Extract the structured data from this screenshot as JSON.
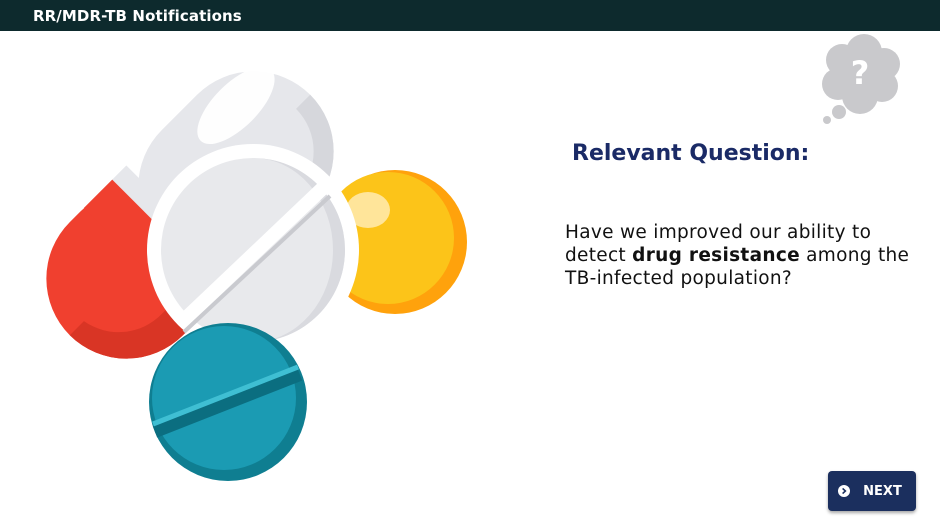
{
  "header": {
    "title": "RR/MDR-TB Notifications"
  },
  "question": {
    "heading": "Relevant Question:",
    "text_before": "Have we improved our ability to detect ",
    "text_bold": "drug resistance",
    "text_after": " among the TB-infected population?"
  },
  "thought_bubble": {
    "symbol": "?"
  },
  "navigation": {
    "next_label": "NEXT",
    "next_icon": "chevron-right-circle-icon"
  },
  "colors": {
    "header_bg": "#0d2a2d",
    "heading": "#1a2a66",
    "button_bg": "#1b2f5e",
    "capsule_red": "#f0402f",
    "capsule_white": "#e6e7eb",
    "pill_yellow": "#fcc419",
    "pill_teal": "#1b9bb3"
  }
}
